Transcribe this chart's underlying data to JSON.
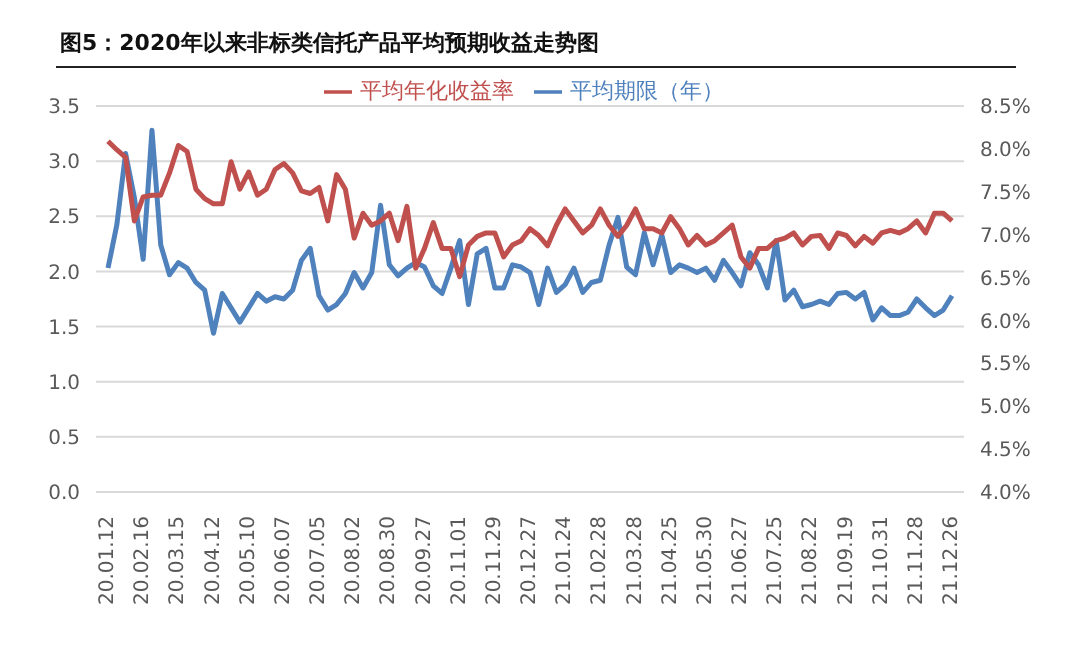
{
  "chart_data": {
    "type": "line",
    "title": "图5：2020年以来非标类信托产品平均预期收益走势图",
    "categories": [
      "20.01.12",
      null,
      null,
      null,
      "20.02.16",
      null,
      null,
      null,
      "20.03.15",
      null,
      null,
      null,
      "20.04.12",
      null,
      null,
      null,
      "20.05.10",
      null,
      null,
      null,
      "20.06.07",
      null,
      null,
      null,
      "20.07.05",
      null,
      null,
      null,
      "20.08.02",
      null,
      null,
      null,
      "20.08.30",
      null,
      null,
      null,
      "20.09.27",
      null,
      null,
      null,
      "20.11.01",
      null,
      null,
      null,
      "20.11.29",
      null,
      null,
      null,
      "20.12.27",
      null,
      null,
      null,
      "21.01.24",
      null,
      null,
      null,
      "21.02.28",
      null,
      null,
      null,
      "21.03.28",
      null,
      null,
      null,
      "21.04.25",
      null,
      null,
      null,
      "21.05.30",
      null,
      null,
      null,
      "21.06.27",
      null,
      null,
      null,
      "21.07.25",
      null,
      null,
      null,
      "21.08.22",
      null,
      null,
      null,
      "21.09.19",
      null,
      null,
      null,
      "21.10.31",
      null,
      null,
      null,
      "21.11.28",
      null,
      null,
      null,
      "21.12.26"
    ],
    "series": [
      {
        "name": "平均期限（年）",
        "color": "#4f81bd",
        "values": [
          2.03,
          2.42,
          3.07,
          2.67,
          2.11,
          3.28,
          2.24,
          1.97,
          2.08,
          2.03,
          1.9,
          1.83,
          1.44,
          1.8,
          1.67,
          1.54,
          1.67,
          1.8,
          1.73,
          1.77,
          1.75,
          1.83,
          2.1,
          2.21,
          1.78,
          1.65,
          1.7,
          1.8,
          1.99,
          1.85,
          1.99,
          2.6,
          2.06,
          1.96,
          2.03,
          2.08,
          2.04,
          1.87,
          1.8,
          2.03,
          2.28,
          1.7,
          2.16,
          2.21,
          1.85,
          1.85,
          2.06,
          2.04,
          1.99,
          1.7,
          2.03,
          1.81,
          1.88,
          2.03,
          1.81,
          1.9,
          1.92,
          2.24,
          2.49,
          2.04,
          1.97,
          2.35,
          2.06,
          2.33,
          1.99,
          2.06,
          2.03,
          1.99,
          2.03,
          1.92,
          2.1,
          1.99,
          1.87,
          2.17,
          2.06,
          1.85,
          2.28,
          1.74,
          1.83,
          1.68,
          1.7,
          1.73,
          1.7,
          1.8,
          1.81,
          1.75,
          1.81,
          1.56,
          1.67,
          1.6,
          1.6,
          1.63,
          1.75,
          1.67,
          1.6,
          1.65,
          1.78
        ]
      },
      {
        "name": "平均年化收益率",
        "color": "#c0504d",
        "axis": "y2",
        "values": [
          8.09,
          7.99,
          7.9,
          7.16,
          7.44,
          7.46,
          7.46,
          7.72,
          8.04,
          7.97,
          7.53,
          7.42,
          7.36,
          7.36,
          7.85,
          7.53,
          7.73,
          7.46,
          7.53,
          7.76,
          7.83,
          7.72,
          7.51,
          7.48,
          7.55,
          7.16,
          7.7,
          7.53,
          6.96,
          7.25,
          7.11,
          7.16,
          7.25,
          6.93,
          7.33,
          6.61,
          6.84,
          7.14,
          6.84,
          6.84,
          6.51,
          6.88,
          6.98,
          7.02,
          7.02,
          6.74,
          6.88,
          6.93,
          7.07,
          6.99,
          6.87,
          7.11,
          7.3,
          7.16,
          7.02,
          7.11,
          7.3,
          7.11,
          6.98,
          7.11,
          7.3,
          7.07,
          7.07,
          7.02,
          7.21,
          7.07,
          6.88,
          6.99,
          6.88,
          6.93,
          7.02,
          7.11,
          6.74,
          6.61,
          6.84,
          6.84,
          6.93,
          6.96,
          7.02,
          6.88,
          6.98,
          6.99,
          6.84,
          7.02,
          6.99,
          6.87,
          6.98,
          6.9,
          7.02,
          7.05,
          7.02,
          7.07,
          7.16,
          7.02,
          7.25,
          7.25,
          7.16
        ]
      }
    ],
    "ylim": [
      0,
      3.5
    ],
    "yticks": [
      {
        "value": 0,
        "label": "0.0"
      },
      {
        "value": 0.5,
        "label": "0.5"
      },
      {
        "value": 1,
        "label": "1.0"
      },
      {
        "value": 1.5,
        "label": "1.5"
      },
      {
        "value": 2,
        "label": "2.0"
      },
      {
        "value": 2.5,
        "label": "2.5"
      },
      {
        "value": 3,
        "label": "3.0"
      },
      {
        "value": 3.5,
        "label": "3.5"
      }
    ],
    "y2lim": [
      4,
      8.5
    ],
    "y2ticks": [
      {
        "value": 4,
        "label": "4.0%"
      },
      {
        "value": 4.5,
        "label": "4.5%"
      },
      {
        "value": 5,
        "label": "5.0%"
      },
      {
        "value": 5.5,
        "label": "5.5%"
      },
      {
        "value": 6,
        "label": "6.0%"
      },
      {
        "value": 6.5,
        "label": "6.5%"
      },
      {
        "value": 7,
        "label": "7.0%"
      },
      {
        "value": 7.5,
        "label": "7.5%"
      },
      {
        "value": 8,
        "label": "8.0%"
      },
      {
        "value": 8.5,
        "label": "8.5%"
      }
    ],
    "grid": "y",
    "legend": "top",
    "marker": "none",
    "line_style": "solid"
  }
}
